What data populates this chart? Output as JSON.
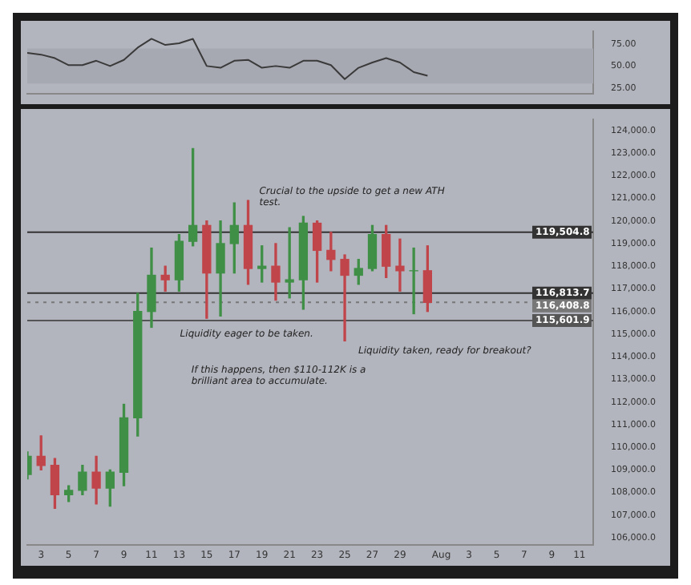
{
  "chart_data": [
    {
      "type": "line",
      "x": [
        "--07-02",
        "--07-03",
        "--07-04",
        "--07-05",
        "--07-06",
        "--07-07",
        "--07-08",
        "--07-09",
        "--07-10",
        "--07-11",
        "--07-12",
        "--07-13",
        "--07-14",
        "--07-15",
        "--07-16",
        "--07-17",
        "--07-18",
        "--07-19",
        "--07-20",
        "--07-21",
        "--07-22",
        "--07-23",
        "--07-24",
        "--07-25",
        "--07-26",
        "--07-27",
        "--07-28",
        "--07-29",
        "--07-30",
        "--07-31"
      ],
      "series": [
        {
          "color": "#3a3a3a",
          "values": [
            65,
            63,
            59,
            51,
            51,
            56,
            50,
            57,
            71,
            81,
            74,
            76,
            81,
            50,
            48,
            56,
            57,
            48,
            50,
            48,
            56,
            56,
            51,
            35,
            48,
            54,
            59,
            54,
            43,
            39
          ]
        }
      ],
      "xlim": [
        "--07-02",
        "--08-12"
      ],
      "ylim": [
        18,
        90
      ],
      "yticks": [
        {
          "value": 25,
          "label": "25.00"
        },
        {
          "value": 50,
          "label": "50.00"
        },
        {
          "value": 75,
          "label": "75.00"
        }
      ],
      "bands": [
        {
          "axis": "y",
          "from": 30,
          "to": 70,
          "color": "#a7a9b2"
        }
      ],
      "tick_labels": "y",
      "marker": "none"
    },
    {
      "type": "candlestick",
      "x": [
        "--07-02",
        "--07-03",
        "--07-04",
        "--07-05",
        "--07-06",
        "--07-07",
        "--07-08",
        "--07-09",
        "--07-10",
        "--07-11",
        "--07-12",
        "--07-13",
        "--07-14",
        "--07-15",
        "--07-16",
        "--07-17",
        "--07-18",
        "--07-19",
        "--07-20",
        "--07-21",
        "--07-22",
        "--07-23",
        "--07-24",
        "--07-25",
        "--07-26",
        "--07-27",
        "--07-28",
        "--07-29",
        "--07-30",
        "--07-31"
      ],
      "ohlc": [
        [
          108800,
          109800,
          108600,
          109600
        ],
        [
          109600,
          110500,
          109000,
          109200
        ],
        [
          109200,
          109500,
          107300,
          107900
        ],
        [
          107900,
          108300,
          107600,
          108100
        ],
        [
          108100,
          109200,
          107900,
          108900
        ],
        [
          108900,
          109600,
          107500,
          108200
        ],
        [
          108200,
          109000,
          107400,
          108900
        ],
        [
          108900,
          111900,
          108300,
          111300
        ],
        [
          111300,
          116800,
          110500,
          116000
        ],
        [
          116000,
          118800,
          115300,
          117600
        ],
        [
          117600,
          118000,
          116900,
          117400
        ],
        [
          117400,
          119400,
          116900,
          119100
        ],
        [
          119100,
          123200,
          118900,
          119800
        ],
        [
          119800,
          120000,
          115700,
          117700
        ],
        [
          117700,
          120000,
          115800,
          119000
        ],
        [
          119000,
          120800,
          117700,
          119800
        ],
        [
          119800,
          120900,
          117200,
          117900
        ],
        [
          117900,
          118900,
          117300,
          118000
        ],
        [
          118000,
          119000,
          116500,
          117300
        ],
        [
          117300,
          119700,
          116600,
          117400
        ],
        [
          117400,
          120200,
          116100,
          119900
        ],
        [
          119900,
          120000,
          117300,
          118700
        ],
        [
          118700,
          119500,
          117800,
          118300
        ],
        [
          118300,
          118500,
          114700,
          117600
        ],
        [
          117600,
          118300,
          117200,
          117900
        ],
        [
          117900,
          119800,
          117800,
          119400
        ],
        [
          119400,
          119800,
          117500,
          118000
        ],
        [
          118000,
          119200,
          116900,
          117800
        ],
        [
          117800,
          118800,
          115900,
          117800
        ],
        [
          117800,
          118900,
          116000,
          116400
        ]
      ],
      "xlim": [
        "--07-02",
        "--08-12"
      ],
      "xticks": [
        {
          "value": "--07-03",
          "label": "3"
        },
        {
          "value": "--07-05",
          "label": "5"
        },
        {
          "value": "--07-07",
          "label": "7"
        },
        {
          "value": "--07-09",
          "label": "9"
        },
        {
          "value": "--07-11",
          "label": "11"
        },
        {
          "value": "--07-13",
          "label": "13"
        },
        {
          "value": "--07-15",
          "label": "15"
        },
        {
          "value": "--07-17",
          "label": "17"
        },
        {
          "value": "--07-19",
          "label": "19"
        },
        {
          "value": "--07-21",
          "label": "21"
        },
        {
          "value": "--07-23",
          "label": "23"
        },
        {
          "value": "--07-25",
          "label": "25"
        },
        {
          "value": "--07-27",
          "label": "27"
        },
        {
          "value": "--07-29",
          "label": "29"
        },
        {
          "value": "--08-01",
          "label": "Aug"
        },
        {
          "value": "--08-03",
          "label": "3"
        },
        {
          "value": "--08-05",
          "label": "5"
        },
        {
          "value": "--08-07",
          "label": "7"
        },
        {
          "value": "--08-09",
          "label": "9"
        },
        {
          "value": "--08-11",
          "label": "11"
        }
      ],
      "ylim": [
        105700,
        124500
      ],
      "yticks": [
        {
          "value": 106000,
          "label": "106,000.0"
        },
        {
          "value": 107000,
          "label": "107,000.0"
        },
        {
          "value": 108000,
          "label": "108,000.0"
        },
        {
          "value": 109000,
          "label": "109,000.0"
        },
        {
          "value": 110000,
          "label": "110,000.0"
        },
        {
          "value": 111000,
          "label": "111,000.0"
        },
        {
          "value": 112000,
          "label": "112,000.0"
        },
        {
          "value": 113000,
          "label": "113,000.0"
        },
        {
          "value": 114000,
          "label": "114,000.0"
        },
        {
          "value": 115000,
          "label": "115,000.0"
        },
        {
          "value": 116000,
          "label": "116,000.0"
        },
        {
          "value": 117000,
          "label": "117,000.0"
        },
        {
          "value": 118000,
          "label": "118,000.0"
        },
        {
          "value": 119000,
          "label": "119,000.0"
        },
        {
          "value": 120000,
          "label": "120,000.0"
        },
        {
          "value": 121000,
          "label": "121,000.0"
        },
        {
          "value": 122000,
          "label": "122,000.0"
        },
        {
          "value": 123000,
          "label": "123,000.0"
        },
        {
          "value": 124000,
          "label": "124,000.0"
        }
      ],
      "ref_lines": [
        {
          "axis": "y",
          "value": 119504.8,
          "label": "119,504.8",
          "color": "#333333"
        },
        {
          "axis": "y",
          "value": 116813.7,
          "label": "116,813.7",
          "color": "#333333"
        },
        {
          "axis": "y",
          "value": 116408.8,
          "label": "116,408.8",
          "color": "#777777",
          "line_style": "dotted"
        },
        {
          "axis": "y",
          "value": 115601.9,
          "label": "115,601.9",
          "color": "#555555"
        }
      ],
      "annotations": [
        "Crucial to the upside to get a new ATH test.",
        "Liquidity eager to be taken.",
        "Liquidity taken, ready for breakout?",
        "If this happens, then $110-112K is a brilliant area to accumulate."
      ]
    }
  ]
}
